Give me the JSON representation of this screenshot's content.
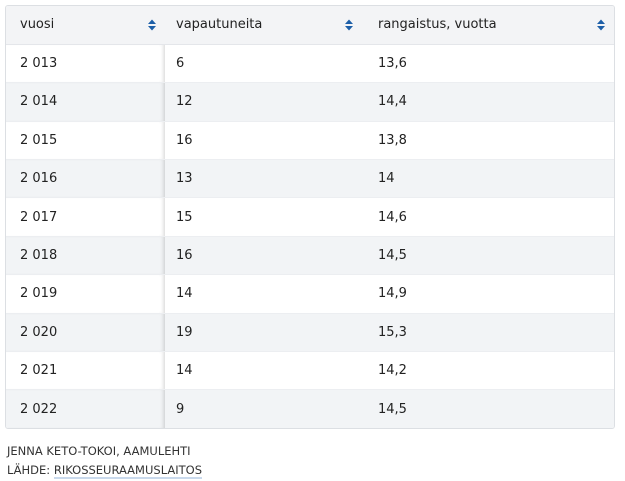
{
  "table": {
    "headers": [
      "vuosi",
      "vapautuneita",
      "rangaistus, vuotta"
    ],
    "rows": [
      [
        "2 013",
        "6",
        "13,6"
      ],
      [
        "2 014",
        "12",
        "14,4"
      ],
      [
        "2 015",
        "16",
        "13,8"
      ],
      [
        "2 016",
        "13",
        "14"
      ],
      [
        "2 017",
        "15",
        "14,6"
      ],
      [
        "2 018",
        "16",
        "14,5"
      ],
      [
        "2 019",
        "14",
        "14,9"
      ],
      [
        "2 020",
        "19",
        "15,3"
      ],
      [
        "2 021",
        "14",
        "14,2"
      ],
      [
        "2 022",
        "9",
        "14,5"
      ]
    ]
  },
  "footer": {
    "credit": "JENNA KETO-TOKOI, AAMULEHTI",
    "source_label": "LÄHDE:",
    "source_link": "RIKOSSEURAAMUSLAITOS"
  }
}
